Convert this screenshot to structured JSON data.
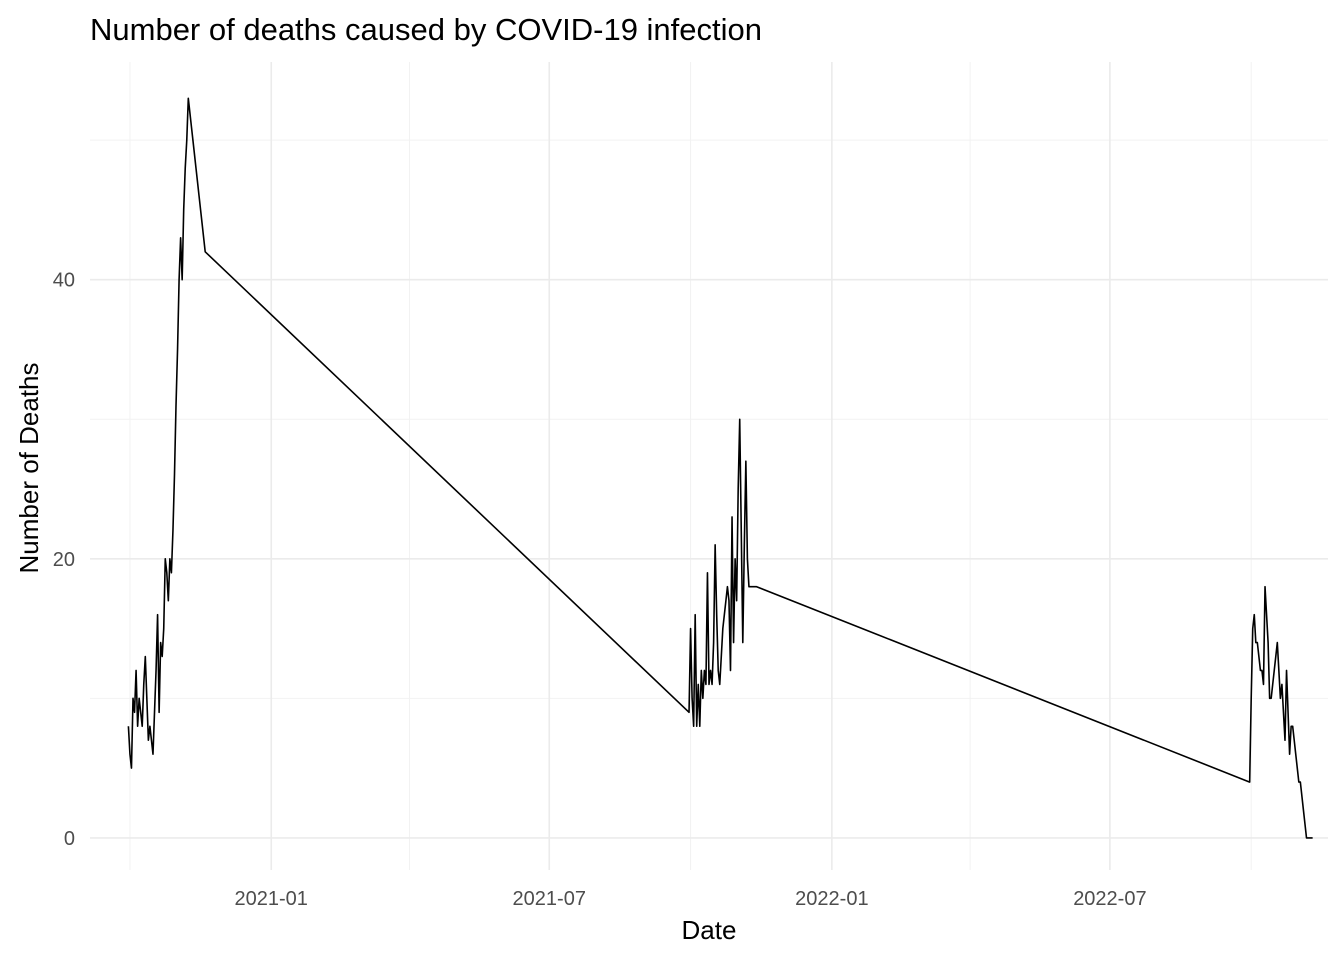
{
  "chart_data": {
    "type": "line",
    "title": "Number of deaths caused by COVID-19 infection",
    "xlabel": "Date",
    "ylabel": "Number of Deaths",
    "x_is_date": true,
    "xlim": [
      "2020-09-05",
      "2022-11-20"
    ],
    "ylim": [
      -2.3,
      55.6
    ],
    "x_ticks": [
      {
        "value": "2021-01-01",
        "label": "2021-01"
      },
      {
        "value": "2021-07-01",
        "label": "2021-07"
      },
      {
        "value": "2022-01-01",
        "label": "2022-01"
      },
      {
        "value": "2022-07-01",
        "label": "2022-07"
      }
    ],
    "x_minor_ticks": [
      "2020-10-01",
      "2021-04-01",
      "2021-10-01",
      "2022-04-01",
      "2022-10-01"
    ],
    "y_ticks": [
      0,
      20,
      40
    ],
    "y_minor_ticks": [
      10,
      30,
      50
    ],
    "grid": true,
    "legend": "none",
    "series": [
      {
        "x": [
          "2020-09-30",
          "2020-10-01",
          "2020-10-02",
          "2020-10-03",
          "2020-10-04",
          "2020-10-05",
          "2020-10-06",
          "2020-10-07",
          "2020-10-08",
          "2020-10-09",
          "2020-10-10",
          "2020-10-11",
          "2020-10-12",
          "2020-10-13",
          "2020-10-14",
          "2020-10-15",
          "2020-10-16",
          "2020-10-17",
          "2020-10-18",
          "2020-10-19",
          "2020-10-20",
          "2020-10-21",
          "2020-10-22",
          "2020-10-23",
          "2020-10-24",
          "2020-10-25",
          "2020-10-26",
          "2020-10-27",
          "2020-10-28",
          "2020-10-29",
          "2020-10-30",
          "2020-10-31",
          "2020-11-01",
          "2020-11-02",
          "2020-11-03",
          "2020-11-04",
          "2020-11-05",
          "2020-11-06",
          "2020-11-07",
          "2020-11-08",
          "2020-11-09",
          "2020-11-10",
          "2020-11-11",
          "2020-11-12",
          "2020-11-13",
          "2020-11-14",
          "2020-11-15",
          "2020-11-16",
          "2020-11-17",
          "2020-11-18",
          "2020-11-19",
          "2021-09-30",
          "2021-10-01",
          "2021-10-02",
          "2021-10-03",
          "2021-10-04",
          "2021-10-05",
          "2021-10-06",
          "2021-10-07",
          "2021-10-08",
          "2021-10-09",
          "2021-10-10",
          "2021-10-11",
          "2021-10-12",
          "2021-10-13",
          "2021-10-14",
          "2021-10-15",
          "2021-10-16",
          "2021-10-17",
          "2021-10-18",
          "2021-10-19",
          "2021-10-20",
          "2021-10-21",
          "2021-10-22",
          "2021-10-23",
          "2021-10-24",
          "2021-10-25",
          "2021-10-26",
          "2021-10-27",
          "2021-10-28",
          "2021-10-29",
          "2021-10-30",
          "2021-10-31",
          "2021-11-01",
          "2021-11-02",
          "2021-11-03",
          "2021-11-04",
          "2021-11-05",
          "2021-11-06",
          "2021-11-07",
          "2021-11-08",
          "2021-11-09",
          "2021-11-10",
          "2021-11-11",
          "2021-11-12",
          "2021-11-13",
          "2022-09-30",
          "2022-10-01",
          "2022-10-02",
          "2022-10-03",
          "2022-10-04",
          "2022-10-05",
          "2022-10-06",
          "2022-10-07",
          "2022-10-08",
          "2022-10-09",
          "2022-10-10",
          "2022-10-11",
          "2022-10-12",
          "2022-10-13",
          "2022-10-14",
          "2022-10-15",
          "2022-10-16",
          "2022-10-17",
          "2022-10-18",
          "2022-10-19",
          "2022-10-20",
          "2022-10-21",
          "2022-10-22",
          "2022-10-23",
          "2022-10-24",
          "2022-10-25",
          "2022-10-26",
          "2022-10-27",
          "2022-10-28",
          "2022-10-29",
          "2022-10-30",
          "2022-10-31",
          "2022-11-01",
          "2022-11-02",
          "2022-11-03",
          "2022-11-04",
          "2022-11-05",
          "2022-11-06",
          "2022-11-07",
          "2022-11-08",
          "2022-11-09",
          "2022-11-10"
        ],
        "y": [
          8,
          6,
          5,
          10,
          9,
          12,
          8,
          10,
          9,
          8,
          11,
          13,
          10,
          7,
          8,
          7,
          6,
          9,
          12,
          16,
          9,
          14,
          13,
          15,
          20,
          19,
          17,
          20,
          19,
          22,
          26,
          31,
          35,
          40,
          43,
          40,
          45,
          48,
          50,
          53,
          52,
          51,
          50,
          49,
          48,
          47,
          46,
          45,
          44,
          43,
          42,
          9,
          15,
          10,
          8,
          16,
          8,
          11,
          8,
          12,
          10,
          12,
          11,
          19,
          11,
          12,
          11,
          14,
          21,
          16,
          12,
          11,
          13,
          15,
          16,
          17,
          18,
          17,
          12,
          23,
          14,
          20,
          17,
          25,
          30,
          22,
          14,
          21,
          27,
          20,
          18,
          18,
          18,
          18,
          18,
          18,
          4,
          10,
          15,
          16,
          14,
          14,
          13,
          12,
          12,
          11,
          18,
          16,
          14,
          10,
          10,
          11,
          12,
          13,
          14,
          12,
          10,
          11,
          9,
          7,
          12,
          9,
          6,
          8,
          8,
          7,
          6,
          5,
          4,
          4,
          3,
          2,
          1,
          0,
          0,
          0,
          0,
          0
        ]
      }
    ]
  }
}
